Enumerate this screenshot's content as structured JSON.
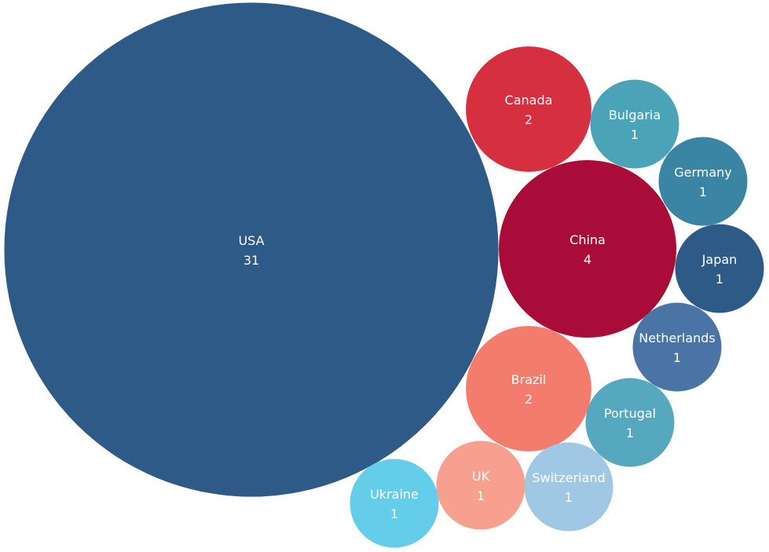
{
  "chart_data": {
    "type": "bubble",
    "title": "",
    "items": [
      {
        "name": "USA",
        "value": 31,
        "color": "#2E5A87"
      },
      {
        "name": "China",
        "value": 4,
        "color": "#A90C38"
      },
      {
        "name": "Canada",
        "value": 2,
        "color": "#D62F3F"
      },
      {
        "name": "Brazil",
        "value": 2,
        "color": "#F47C6C"
      },
      {
        "name": "Bulgaria",
        "value": 1,
        "color": "#4BA3B8"
      },
      {
        "name": "Germany",
        "value": 1,
        "color": "#3A84A4"
      },
      {
        "name": "Japan",
        "value": 1,
        "color": "#2E5A87"
      },
      {
        "name": "Netherlands",
        "value": 1,
        "color": "#4A74A5"
      },
      {
        "name": "Portugal",
        "value": 1,
        "color": "#55A8BE"
      },
      {
        "name": "Switzerland",
        "value": 1,
        "color": "#A0C8E4"
      },
      {
        "name": "UK",
        "value": 1,
        "color": "#F7A090"
      },
      {
        "name": "Ukraine",
        "value": 1,
        "color": "#64CDE9"
      }
    ]
  }
}
